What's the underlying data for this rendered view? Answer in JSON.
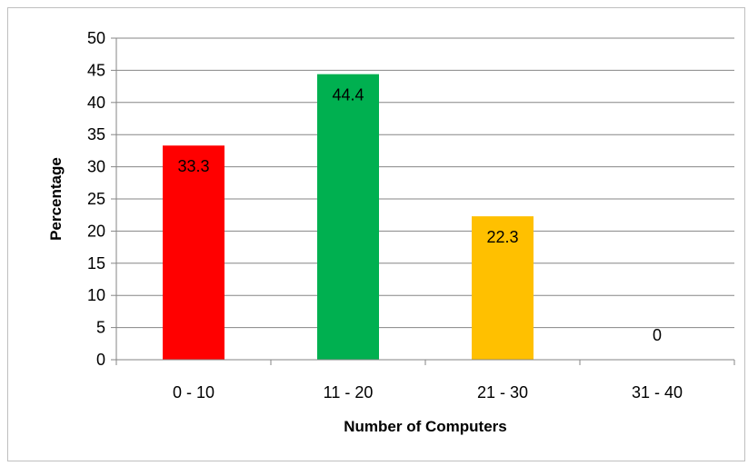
{
  "chart_data": {
    "type": "bar",
    "categories": [
      "0 - 10",
      "11 - 20",
      "21 - 30",
      "31 - 40"
    ],
    "values": [
      33.3,
      44.4,
      22.3,
      0
    ],
    "data_labels": [
      "33.3",
      "44.4",
      "22.3",
      "0"
    ],
    "bar_colors": [
      "#ff0000",
      "#00b050",
      "#ffc000",
      "#ffc000"
    ],
    "title": "",
    "xlabel": "Number of Computers",
    "ylabel": "Percentage",
    "ylim": [
      0,
      50
    ],
    "yticks": [
      "0",
      "5",
      "10",
      "15",
      "20",
      "25",
      "30",
      "35",
      "40",
      "45",
      "50"
    ],
    "grid": true,
    "legend": "none"
  }
}
